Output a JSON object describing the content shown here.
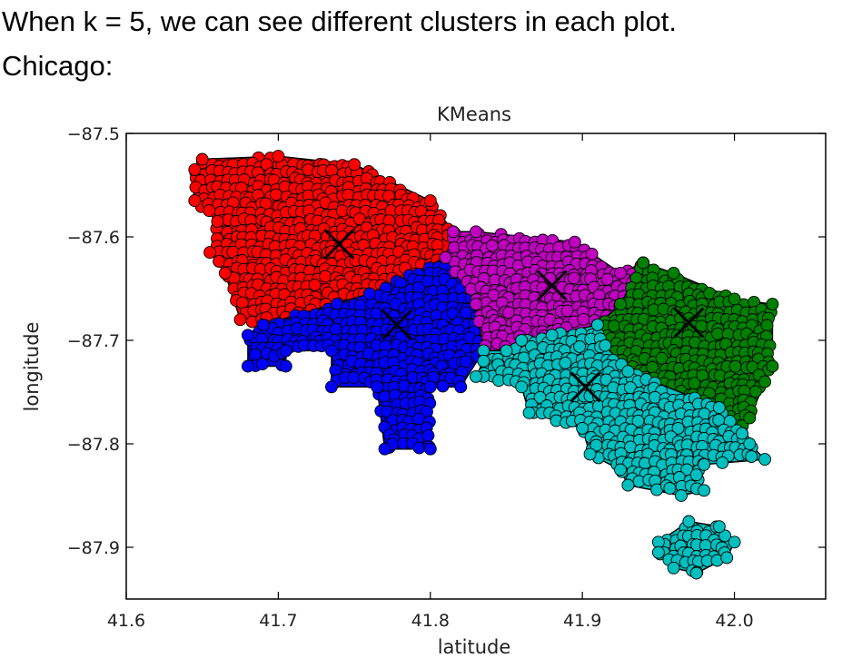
{
  "text": {
    "intro": "When k = 5, we can see different clusters in each plot.",
    "city": "Chicago:"
  },
  "chart_data": {
    "type": "scatter",
    "title": "KMeans",
    "xlabel": "latitude",
    "ylabel": "longitude",
    "xlim": [
      41.6,
      42.06
    ],
    "ylim": [
      -87.95,
      -87.5
    ],
    "x_ticks": [
      41.6,
      41.7,
      41.8,
      41.9,
      42.0
    ],
    "x_tick_labels": [
      "41.6",
      "41.7",
      "41.8",
      "41.9",
      "42.0"
    ],
    "y_ticks": [
      -87.5,
      -87.6,
      -87.7,
      -87.8,
      -87.9
    ],
    "y_tick_labels": [
      "−87.5",
      "−87.6",
      "−87.7",
      "−87.8",
      "−87.9"
    ],
    "grid": false,
    "marker_edge_color": "#000000",
    "clusters": [
      {
        "color": "#ff0000",
        "centroid": [
          41.74,
          -87.607
        ],
        "region": [
          [
            41.65,
            -87.525
          ],
          [
            41.7,
            -87.522
          ],
          [
            41.75,
            -87.53
          ],
          [
            41.8,
            -87.565
          ],
          [
            41.815,
            -87.595
          ],
          [
            41.81,
            -87.62
          ],
          [
            41.76,
            -87.655
          ],
          [
            41.69,
            -87.685
          ],
          [
            41.675,
            -87.68
          ],
          [
            41.665,
            -87.635
          ],
          [
            41.655,
            -87.615
          ],
          [
            41.66,
            -87.585
          ],
          [
            41.645,
            -87.565
          ],
          [
            41.645,
            -87.535
          ]
        ]
      },
      {
        "color": "#0000ff",
        "centroid": [
          41.778,
          -87.685
        ],
        "region": [
          [
            41.69,
            -87.685
          ],
          [
            41.76,
            -87.655
          ],
          [
            41.81,
            -87.62
          ],
          [
            41.83,
            -87.665
          ],
          [
            41.835,
            -87.71
          ],
          [
            41.82,
            -87.745
          ],
          [
            41.8,
            -87.745
          ],
          [
            41.8,
            -87.805
          ],
          [
            41.77,
            -87.805
          ],
          [
            41.765,
            -87.745
          ],
          [
            41.735,
            -87.745
          ],
          [
            41.735,
            -87.71
          ],
          [
            41.705,
            -87.71
          ],
          [
            41.705,
            -87.725
          ],
          [
            41.68,
            -87.725
          ],
          [
            41.68,
            -87.695
          ]
        ]
      },
      {
        "color": "#bf00bf",
        "centroid": [
          41.88,
          -87.647
        ],
        "region": [
          [
            41.81,
            -87.62
          ],
          [
            41.815,
            -87.595
          ],
          [
            41.83,
            -87.595
          ],
          [
            41.895,
            -87.605
          ],
          [
            41.925,
            -87.635
          ],
          [
            41.94,
            -87.625
          ],
          [
            41.925,
            -87.665
          ],
          [
            41.91,
            -87.685
          ],
          [
            41.88,
            -87.695
          ],
          [
            41.86,
            -87.7
          ],
          [
            41.85,
            -87.71
          ],
          [
            41.835,
            -87.71
          ],
          [
            41.83,
            -87.665
          ]
        ]
      },
      {
        "color": "#008000",
        "centroid": [
          41.97,
          -87.683
        ],
        "region": [
          [
            41.94,
            -87.625
          ],
          [
            41.96,
            -87.635
          ],
          [
            42.0,
            -87.66
          ],
          [
            42.025,
            -87.665
          ],
          [
            42.025,
            -87.725
          ],
          [
            42.02,
            -87.74
          ],
          [
            42.01,
            -87.775
          ],
          [
            42.005,
            -87.79
          ],
          [
            41.99,
            -87.765
          ],
          [
            41.93,
            -87.73
          ],
          [
            41.915,
            -87.705
          ],
          [
            41.91,
            -87.685
          ],
          [
            41.925,
            -87.665
          ]
        ]
      },
      {
        "color": "#00bfbf",
        "centroid": [
          41.902,
          -87.745
        ],
        "region": [
          [
            41.835,
            -87.71
          ],
          [
            41.85,
            -87.71
          ],
          [
            41.86,
            -87.7
          ],
          [
            41.88,
            -87.695
          ],
          [
            41.91,
            -87.685
          ],
          [
            41.915,
            -87.705
          ],
          [
            41.93,
            -87.73
          ],
          [
            41.99,
            -87.765
          ],
          [
            42.005,
            -87.79
          ],
          [
            42.01,
            -87.8
          ],
          [
            42.02,
            -87.815
          ],
          [
            41.98,
            -87.82
          ],
          [
            41.975,
            -87.83
          ],
          [
            41.98,
            -87.845
          ],
          [
            41.965,
            -87.85
          ],
          [
            41.93,
            -87.84
          ],
          [
            41.925,
            -87.825
          ],
          [
            41.905,
            -87.81
          ],
          [
            41.9,
            -87.785
          ],
          [
            41.865,
            -87.77
          ],
          [
            41.86,
            -87.745
          ],
          [
            41.835,
            -87.735
          ],
          [
            41.83,
            -87.735
          ],
          [
            41.835,
            -87.72
          ]
        ]
      },
      {
        "color": "#00bfbf",
        "centroid": null,
        "region": [
          [
            41.95,
            -87.895
          ],
          [
            41.97,
            -87.875
          ],
          [
            41.99,
            -87.88
          ],
          [
            42.0,
            -87.895
          ],
          [
            41.995,
            -87.91
          ],
          [
            41.975,
            -87.925
          ],
          [
            41.96,
            -87.92
          ],
          [
            41.95,
            -87.905
          ]
        ]
      }
    ]
  }
}
